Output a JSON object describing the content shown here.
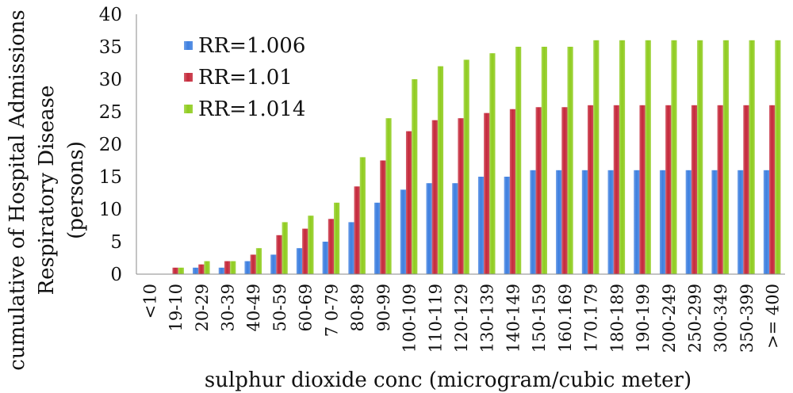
{
  "chart_data": {
    "type": "bar",
    "title": "",
    "xlabel": "sulphur dioxide conc (microgram/cubic meter)",
    "ylabel_lines": [
      "cumulative of Hospital Admissions",
      "Respiratory Disease",
      "(persons)"
    ],
    "ylim": [
      0,
      40
    ],
    "yticks": [
      0,
      5,
      10,
      15,
      20,
      25,
      30,
      35,
      40
    ],
    "grid": false,
    "legend_position": "top-left",
    "categories": [
      "<10",
      "19-10",
      "20-29",
      "30-39",
      "40-49",
      "50-59",
      "60-69",
      "7 0-79",
      "80-89",
      "90-99",
      "100-109",
      "110-119",
      "120-129",
      "130-139",
      "140-149",
      "150-159",
      "160.169",
      "170.179",
      "180-189",
      "190-199",
      "200-249",
      "250-299",
      "300-349",
      "350-399",
      ">= 400"
    ],
    "series": [
      {
        "name": "RR=1.006",
        "color": "#3d7fe0",
        "values": [
          0,
          0,
          1,
          1,
          2,
          3,
          4,
          5,
          8,
          11,
          13,
          14,
          14,
          15,
          15,
          16,
          16,
          16,
          16,
          16,
          16,
          16,
          16,
          16,
          16
        ]
      },
      {
        "name": "RR=1.01",
        "color": "#c5283a",
        "values": [
          0,
          1,
          1.5,
          2,
          3,
          6,
          7,
          8.5,
          13.5,
          17.5,
          22,
          23.7,
          24,
          24.8,
          25.4,
          25.7,
          25.7,
          26,
          26,
          26,
          26,
          26,
          26,
          26,
          26
        ]
      },
      {
        "name": "RR=1.014",
        "color": "#8fcc1e",
        "values": [
          0,
          1,
          2,
          2,
          4,
          8,
          9,
          11,
          18,
          24,
          30,
          32,
          33,
          34,
          35,
          35,
          35,
          36,
          36,
          36,
          36,
          36,
          36,
          36,
          36
        ]
      }
    ]
  }
}
